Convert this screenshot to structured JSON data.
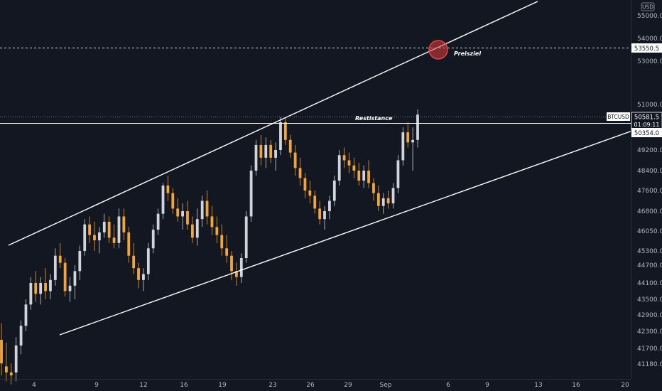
{
  "chart_data": {
    "type": "candlestick",
    "currency": "USD",
    "symbol": "BTCUSD",
    "x_ticks": [
      "4",
      "9",
      "12",
      "16",
      "19",
      "23",
      "26",
      "29",
      "Sep",
      "6",
      "9",
      "13",
      "16",
      "20"
    ],
    "y_ticks": [
      55000.0,
      54000.0,
      53000.0,
      51000.0,
      49200.0,
      48400.0,
      47600.0,
      46800.0,
      46050.0,
      45300.0,
      44700.0,
      44100.0,
      43500.0,
      42900.0,
      42300.0,
      41700.0,
      41180.0
    ],
    "price_tags": {
      "target": "53550.5",
      "last": "50581.5",
      "countdown": "01:09:11",
      "resistance": "50354.0"
    },
    "annotations": {
      "resistance": "Restistance",
      "target": "Preisziel"
    },
    "candles": [
      [
        42000,
        42600,
        40800,
        41200
      ],
      [
        41100,
        41900,
        40600,
        40900
      ],
      [
        40900,
        41200,
        40500,
        40800
      ],
      [
        40900,
        42100,
        40600,
        41800
      ],
      [
        41800,
        42700,
        41500,
        42500
      ],
      [
        42500,
        43500,
        42300,
        43300
      ],
      [
        43300,
        44300,
        43100,
        44100
      ],
      [
        44100,
        44500,
        43400,
        43700
      ],
      [
        43700,
        44300,
        43300,
        44100
      ],
      [
        44100,
        44600,
        43500,
        43800
      ],
      [
        43800,
        44400,
        43500,
        44200
      ],
      [
        44200,
        45400,
        44000,
        45100
      ],
      [
        45100,
        45600,
        44600,
        44800
      ],
      [
        44800,
        45000,
        43600,
        43800
      ],
      [
        43800,
        44300,
        43400,
        44000
      ],
      [
        44000,
        44700,
        43500,
        44500
      ],
      [
        44500,
        45500,
        44200,
        45300
      ],
      [
        45300,
        46500,
        45100,
        46300
      ],
      [
        46300,
        46600,
        45600,
        45900
      ],
      [
        45900,
        46400,
        45300,
        45700
      ],
      [
        45700,
        46200,
        45200,
        46000
      ],
      [
        46000,
        46700,
        45800,
        46400
      ],
      [
        46400,
        46600,
        45600,
        45800
      ],
      [
        45800,
        46300,
        45400,
        45600
      ],
      [
        45600,
        46900,
        45400,
        46600
      ],
      [
        46600,
        46900,
        45700,
        46000
      ],
      [
        46000,
        46200,
        44800,
        45100
      ],
      [
        45100,
        45600,
        44400,
        44600
      ],
      [
        44600,
        44800,
        43900,
        44200
      ],
      [
        44200,
        44600,
        43800,
        44400
      ],
      [
        44400,
        45600,
        44200,
        45400
      ],
      [
        45400,
        46300,
        45200,
        46100
      ],
      [
        46100,
        46900,
        45900,
        46700
      ],
      [
        46700,
        47900,
        46500,
        47800
      ],
      [
        47800,
        48200,
        47200,
        47500
      ],
      [
        47500,
        47700,
        46700,
        46900
      ],
      [
        46900,
        47300,
        46400,
        46600
      ],
      [
        46600,
        47100,
        46100,
        46800
      ],
      [
        46800,
        47200,
        46100,
        46300
      ],
      [
        46300,
        46600,
        45600,
        45800
      ],
      [
        45800,
        46900,
        45500,
        46500
      ],
      [
        46500,
        47400,
        46200,
        47200
      ],
      [
        47200,
        47600,
        46300,
        46600
      ],
      [
        46600,
        47000,
        45900,
        46200
      ],
      [
        46200,
        46600,
        45600,
        45900
      ],
      [
        45900,
        46300,
        45100,
        45400
      ],
      [
        45400,
        45900,
        44800,
        45100
      ],
      [
        45100,
        45300,
        44200,
        44500
      ],
      [
        44500,
        44800,
        44000,
        44300
      ],
      [
        44300,
        45200,
        44100,
        45000
      ],
      [
        45000,
        46800,
        44800,
        46600
      ],
      [
        46600,
        48600,
        46400,
        48400
      ],
      [
        48400,
        49600,
        48200,
        49400
      ],
      [
        49400,
        49800,
        48600,
        48900
      ],
      [
        48900,
        49700,
        48500,
        49400
      ],
      [
        49400,
        49600,
        48700,
        48900
      ],
      [
        48900,
        49500,
        48400,
        49200
      ],
      [
        49200,
        50500,
        49000,
        50300
      ],
      [
        50300,
        50500,
        49400,
        49600
      ],
      [
        49600,
        49800,
        48900,
        49100
      ],
      [
        49100,
        49400,
        48200,
        48500
      ],
      [
        48500,
        48900,
        47800,
        48100
      ],
      [
        48100,
        48300,
        47300,
        47600
      ],
      [
        47600,
        48000,
        47100,
        47400
      ],
      [
        47400,
        47600,
        46700,
        46900
      ],
      [
        46900,
        47200,
        46300,
        46500
      ],
      [
        46500,
        47000,
        46100,
        46800
      ],
      [
        46800,
        47400,
        46500,
        47200
      ],
      [
        47200,
        48200,
        47000,
        48000
      ],
      [
        48000,
        49200,
        47800,
        49000
      ],
      [
        49000,
        49300,
        48500,
        48800
      ],
      [
        48800,
        49100,
        48300,
        48600
      ],
      [
        48600,
        48900,
        48100,
        48400
      ],
      [
        48400,
        48700,
        47800,
        48000
      ],
      [
        48000,
        48600,
        47700,
        48400
      ],
      [
        48400,
        48800,
        47700,
        47900
      ],
      [
        47900,
        48100,
        47200,
        47500
      ],
      [
        47500,
        47800,
        46800,
        47000
      ],
      [
        47000,
        47500,
        46700,
        47300
      ],
      [
        47300,
        47600,
        46900,
        47100
      ],
      [
        47100,
        47900,
        46900,
        47700
      ],
      [
        47700,
        49000,
        47500,
        48800
      ],
      [
        48800,
        50100,
        48600,
        49900
      ],
      [
        49900,
        50300,
        49300,
        49500
      ],
      [
        49500,
        50100,
        48400,
        49600
      ],
      [
        49600,
        50800,
        49300,
        50600
      ]
    ]
  }
}
